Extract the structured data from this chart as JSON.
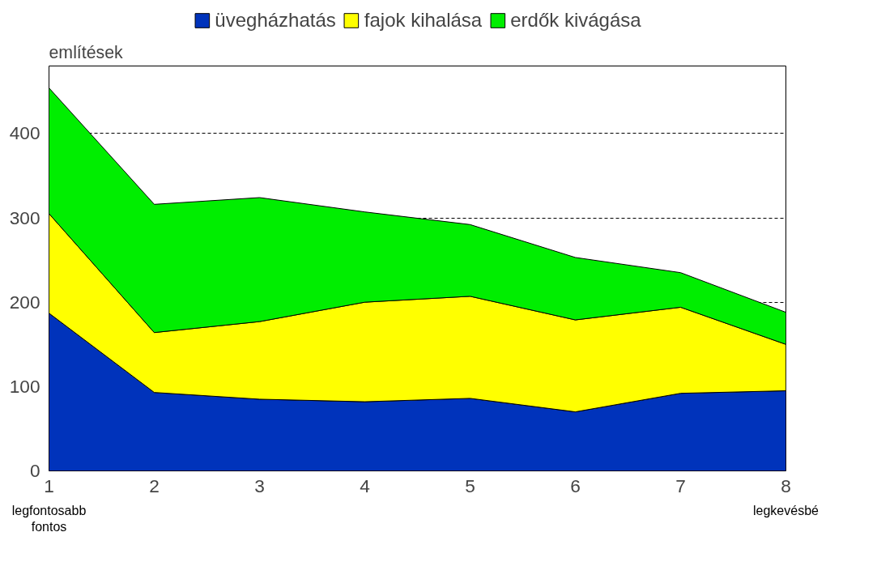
{
  "chart_data": {
    "type": "area",
    "stacked": true,
    "ylabel": "említések",
    "x": [
      1,
      2,
      3,
      4,
      5,
      6,
      7,
      8
    ],
    "series": [
      {
        "name": "üvegházhatás",
        "color": "#0033bb",
        "values": [
          187,
          93,
          85,
          82,
          86,
          70,
          92,
          95
        ]
      },
      {
        "name": "fajok kihalása",
        "color": "#ffff00",
        "values": [
          118,
          71,
          92,
          118,
          121,
          109,
          102,
          55
        ]
      },
      {
        "name": "erdők kivágása",
        "color": "#00ee00",
        "values": [
          149,
          152,
          147,
          107,
          85,
          74,
          41,
          38
        ]
      }
    ],
    "xlim": [
      1,
      8
    ],
    "ylim": [
      0,
      480
    ],
    "xticks": [
      1,
      2,
      3,
      4,
      5,
      6,
      7,
      8
    ],
    "yticks": [
      0,
      100,
      200,
      300,
      400
    ],
    "grid": "y",
    "legend": "top",
    "annotations": [
      "legfontosabb\nfontos",
      "legkevésbé"
    ]
  }
}
